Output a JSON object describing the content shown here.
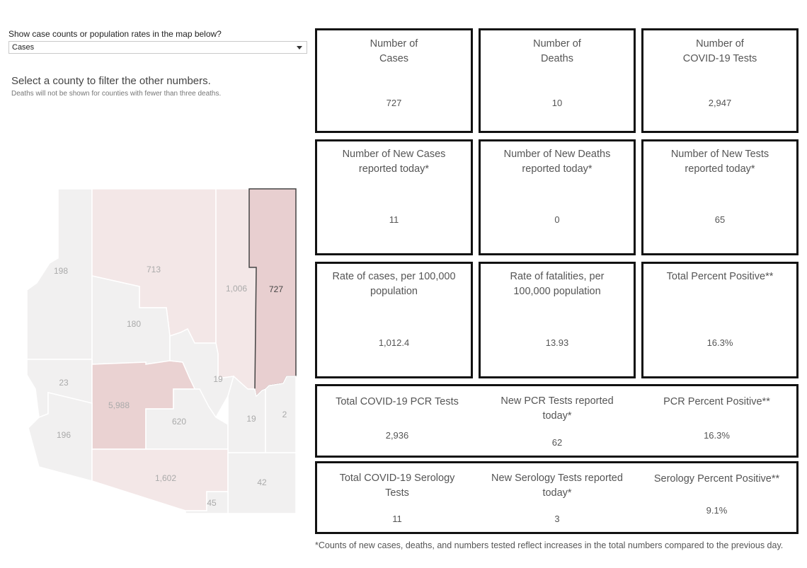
{
  "filter": {
    "label": "Show case counts or population rates in the map below?",
    "selected": "Cases"
  },
  "instructions": {
    "heading": "Select a county to filter the other numbers.",
    "note": "Deaths will not be shown for counties with fewer than three deaths."
  },
  "map": {
    "counties": [
      {
        "value": "198"
      },
      {
        "value": "713"
      },
      {
        "value": "1,006"
      },
      {
        "value": "727"
      },
      {
        "value": "180"
      },
      {
        "value": "23"
      },
      {
        "value": "5,988"
      },
      {
        "value": "19"
      },
      {
        "value": "196"
      },
      {
        "value": "620"
      },
      {
        "value": "19"
      },
      {
        "value": "2"
      },
      {
        "value": "1,602"
      },
      {
        "value": "42"
      },
      {
        "value": "45"
      }
    ],
    "colors": {
      "base": "#f1f0f0",
      "light": "#f3e7e7",
      "medium": "#ead2d2",
      "selected": "#e8cfd0",
      "border": "#ffffff",
      "text": "#aaaaaa"
    }
  },
  "cards": [
    {
      "title1": "Number of",
      "title2": "Cases",
      "value": "727"
    },
    {
      "title1": "Number of",
      "title2": "Deaths",
      "value": "10"
    },
    {
      "title1": "Number of",
      "title2": "COVID-19 Tests",
      "value": "2,947"
    },
    {
      "title1": "Number of New Cases",
      "title2": "reported today*",
      "value": "11"
    },
    {
      "title1": "Number of New Deaths",
      "title2": "reported today*",
      "value": "0"
    },
    {
      "title1": "Number of New Tests",
      "title2": "reported today*",
      "value": "65"
    },
    {
      "title1": "Rate of cases, per 100,000",
      "title2": "population",
      "value": "1,012.4"
    },
    {
      "title1": "Rate of fatalities, per",
      "title2": "100,000 population",
      "value": "13.93"
    },
    {
      "title1": "Total Percent Positive**",
      "title2": "",
      "value": "16.3%"
    }
  ],
  "pcr": {
    "total": {
      "title1": "Total COVID-19 PCR Tests",
      "title2": "",
      "value": "2,936"
    },
    "new": {
      "title1": "New PCR Tests reported",
      "title2": "today*",
      "value": "62"
    },
    "positive": {
      "title1": "PCR Percent Positive**",
      "title2": "",
      "value": "16.3%"
    }
  },
  "serology": {
    "total": {
      "title1": "Total COVID-19 Serology",
      "title2": "Tests",
      "value": "11"
    },
    "new": {
      "title1": "New Serology Tests reported",
      "title2": "today*",
      "value": "3"
    },
    "positive": {
      "title1": "Serology Percent Positive**",
      "title2": "",
      "value": "9.1%"
    }
  },
  "footnote": "*Counts of new cases, deaths, and numbers tested reflect increases in the total numbers compared to the previous day."
}
